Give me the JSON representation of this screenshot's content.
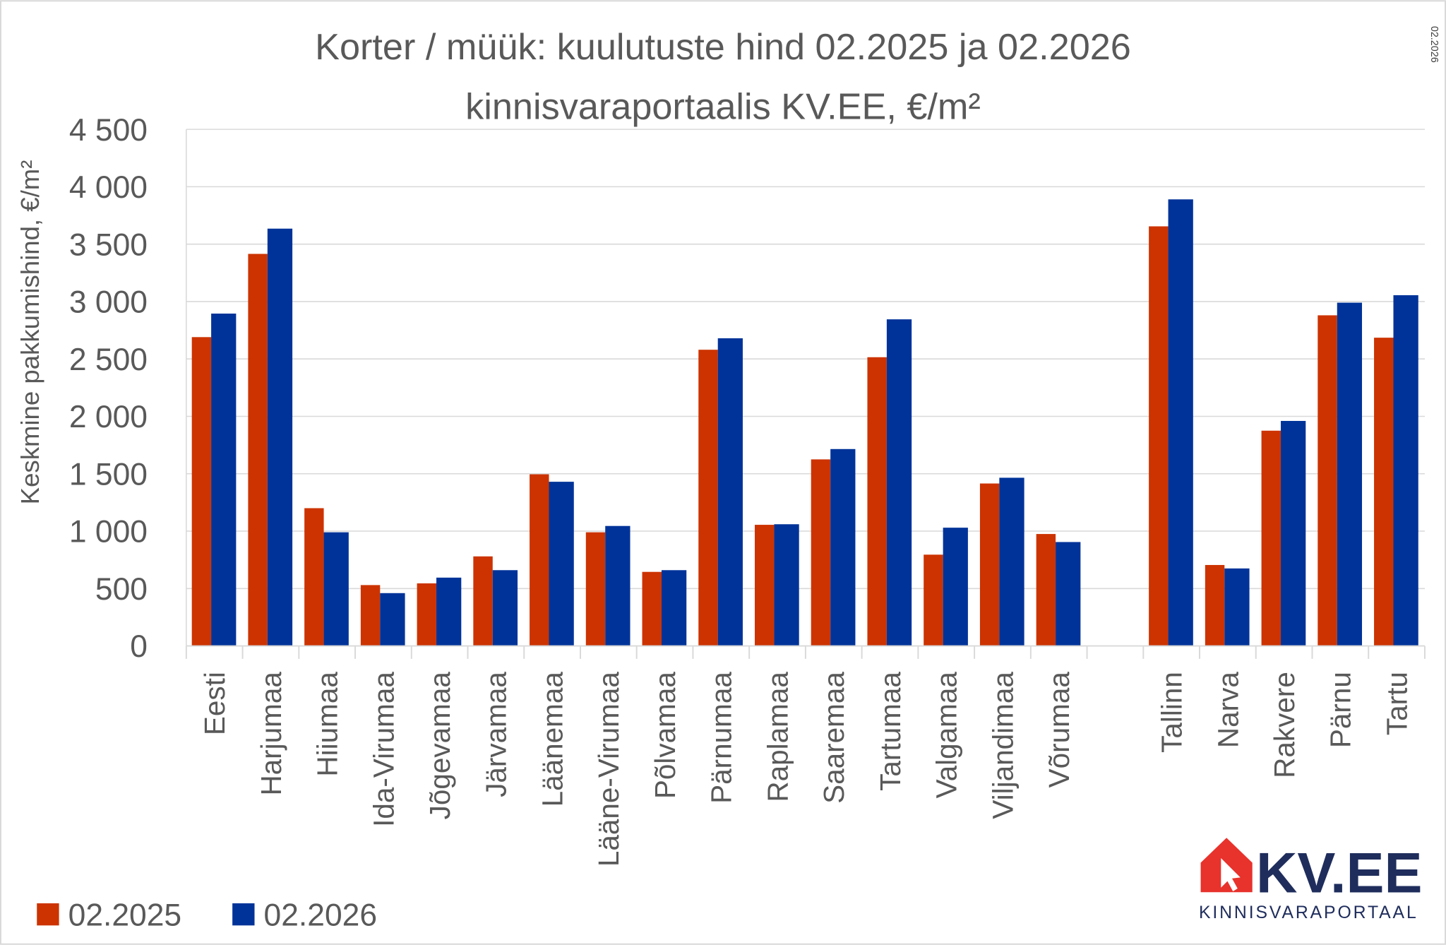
{
  "chart_data": {
    "type": "bar",
    "title": "Korter / müük: kuulutuste hind 02.2025 ja 02.2026",
    "subtitle": "kinnisvaraportaalis KV.EE, €/m²",
    "side_note": "02.2026",
    "ylabel": "Keskmine pakkumishind, €/m²",
    "xlabel": "",
    "ylim": [
      0,
      4500
    ],
    "yticks": [
      0,
      500,
      1000,
      1500,
      2000,
      2500,
      3000,
      3500,
      4000,
      4500
    ],
    "ytick_labels": [
      "0",
      "500",
      "1 000",
      "1 500",
      "2 000",
      "2 500",
      "3 000",
      "3 500",
      "4 000",
      "4 500"
    ],
    "grid": true,
    "legend_position": "bottom-left",
    "categories": [
      "Eesti",
      "Harjumaa",
      "Hiiumaa",
      "Ida-Virumaa",
      "Jõgevamaa",
      "Järvamaa",
      "Läänemaa",
      "Lääne-Virumaa",
      "Põlvamaa",
      "Pärnumaa",
      "Raplamaa",
      "Saaremaa",
      "Tartumaa",
      "Valgamaa",
      "Viljandimaa",
      "Võrumaa",
      "",
      "Tallinn",
      "Narva",
      "Rakvere",
      "Pärnu",
      "Tartu"
    ],
    "series": [
      {
        "name": "02.2025",
        "color": "#cc3300",
        "values": [
          2690,
          3415,
          1200,
          530,
          545,
          780,
          1495,
          990,
          645,
          2580,
          1055,
          1625,
          2515,
          795,
          1415,
          975,
          null,
          3655,
          705,
          1875,
          2880,
          2685
        ]
      },
      {
        "name": "02.2026",
        "color": "#003399",
        "values": [
          2895,
          3635,
          990,
          460,
          595,
          660,
          1430,
          1045,
          660,
          2680,
          1060,
          1715,
          2845,
          1030,
          1465,
          905,
          null,
          3890,
          675,
          1960,
          2990,
          3055
        ]
      }
    ]
  },
  "logo": {
    "text": "KV.EE",
    "tagline": "KINNISVARAPORTAAL",
    "red": "#e8322c",
    "navy": "#1f2d5c"
  }
}
